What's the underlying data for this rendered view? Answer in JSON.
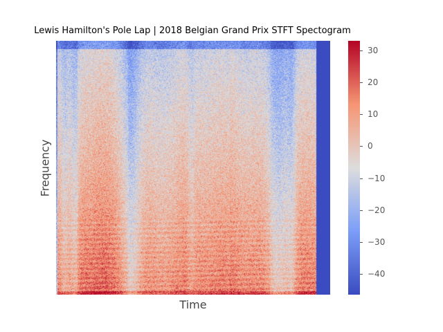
{
  "chart_data": {
    "type": "heatmap",
    "title": "Lewis Hamilton's Pole Lap | 2018 Belgian Grand Prix STFT Spectogram",
    "xlabel": "Time",
    "ylabel": "Frequency",
    "colormap": "coolwarm",
    "grid": false,
    "colorbar": {
      "range": [
        -46.5,
        33
      ],
      "ticks": [
        -40,
        -30,
        -20,
        -10,
        0,
        10,
        20,
        30
      ],
      "tick_labels": [
        "−40",
        "−30",
        "−20",
        "−10",
        "0",
        "10",
        "20",
        "30"
      ]
    },
    "fill_value_after_end": -46.5
  },
  "colors": {
    "cold": "#3b4cc0",
    "neutral": "#dddddd",
    "hot": "#b40426"
  }
}
